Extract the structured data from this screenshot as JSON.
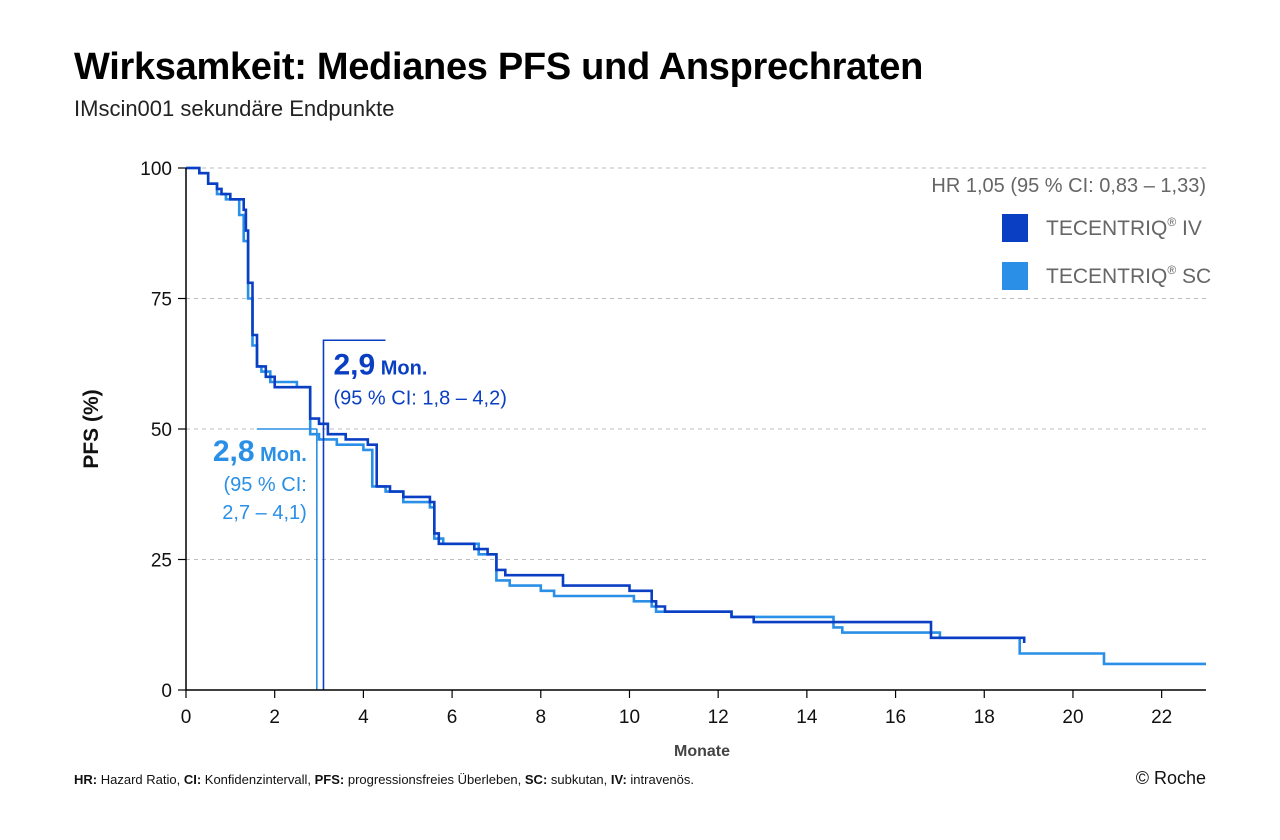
{
  "header": {
    "title": "Wirksamkeit: Medianes PFS und Ansprechraten",
    "subtitle": "IMscin001 sekundäre Endpunkte"
  },
  "colors": {
    "iv": "#0a3fc4",
    "sc": "#2a8fe6",
    "grid": "#bdbdbd",
    "axis": "#000000",
    "hr_text": "#666666"
  },
  "footnote": [
    {
      "term": "HR:",
      "text": " Hazard Ratio, "
    },
    {
      "term": "CI:",
      "text": " Konfidenzintervall, "
    },
    {
      "term": "PFS:",
      "text": " progressionsfreies Überleben, "
    },
    {
      "term": "SC:",
      "text": " subkutan, "
    },
    {
      "term": "IV:",
      "text": " intravenös."
    }
  ],
  "copyright": "© Roche",
  "chart_data": {
    "type": "line",
    "subtype": "kaplan-meier step",
    "xlabel": "Monate",
    "ylabel": "PFS (%)",
    "xlim": [
      0,
      23
    ],
    "ylim": [
      0,
      100
    ],
    "xticks": [
      0,
      2,
      4,
      6,
      8,
      10,
      12,
      14,
      16,
      18,
      20,
      22
    ],
    "yticks": [
      0,
      25,
      50,
      75,
      100
    ],
    "grid": "horizontal dashed",
    "legend_position": "top-right",
    "hr_annotation": "HR 1,05 (95 % CI: 0,83 – 1,33)",
    "series": [
      {
        "key": "iv",
        "name": "TECENTRIQ® IV",
        "legend_main": "TECENTRIQ",
        "legend_sup": "®",
        "legend_suffix": " IV",
        "points": [
          [
            0,
            100
          ],
          [
            0.3,
            99
          ],
          [
            0.5,
            97
          ],
          [
            0.7,
            96
          ],
          [
            0.8,
            95
          ],
          [
            1.0,
            94
          ],
          [
            1.3,
            92
          ],
          [
            1.35,
            88
          ],
          [
            1.4,
            78
          ],
          [
            1.5,
            68
          ],
          [
            1.6,
            62
          ],
          [
            1.8,
            60
          ],
          [
            2.0,
            58
          ],
          [
            2.8,
            52
          ],
          [
            3.0,
            51
          ],
          [
            3.2,
            49
          ],
          [
            3.6,
            48
          ],
          [
            4.1,
            47
          ],
          [
            4.3,
            39
          ],
          [
            4.6,
            38
          ],
          [
            4.9,
            37
          ],
          [
            5.1,
            37
          ],
          [
            5.5,
            36
          ],
          [
            5.6,
            30
          ],
          [
            5.7,
            28
          ],
          [
            6.5,
            27
          ],
          [
            6.8,
            26
          ],
          [
            7.0,
            23
          ],
          [
            7.2,
            22
          ],
          [
            8.3,
            22
          ],
          [
            8.5,
            20
          ],
          [
            10.0,
            19
          ],
          [
            10.5,
            17
          ],
          [
            10.6,
            16
          ],
          [
            10.8,
            15
          ],
          [
            12.0,
            15
          ],
          [
            12.3,
            14
          ],
          [
            12.8,
            13
          ],
          [
            16.8,
            10
          ],
          [
            18.9,
            10
          ],
          [
            18.9,
            9
          ]
        ]
      },
      {
        "key": "sc",
        "name": "TECENTRIQ® SC",
        "legend_main": "TECENTRIQ",
        "legend_sup": "®",
        "legend_suffix": " SC",
        "points": [
          [
            0,
            100
          ],
          [
            0.3,
            99
          ],
          [
            0.5,
            97
          ],
          [
            0.7,
            95
          ],
          [
            0.9,
            94
          ],
          [
            1.2,
            91
          ],
          [
            1.3,
            86
          ],
          [
            1.4,
            75
          ],
          [
            1.5,
            66
          ],
          [
            1.6,
            62
          ],
          [
            1.7,
            61
          ],
          [
            1.9,
            59
          ],
          [
            2.5,
            58
          ],
          [
            2.8,
            49
          ],
          [
            3.0,
            48
          ],
          [
            3.4,
            47
          ],
          [
            4.0,
            46
          ],
          [
            4.2,
            39
          ],
          [
            4.5,
            38
          ],
          [
            4.9,
            36
          ],
          [
            5.5,
            35
          ],
          [
            5.6,
            29
          ],
          [
            5.8,
            28
          ],
          [
            6.6,
            26
          ],
          [
            7.0,
            21
          ],
          [
            7.3,
            20
          ],
          [
            8.0,
            19
          ],
          [
            8.3,
            18
          ],
          [
            9.0,
            18
          ],
          [
            10.1,
            17
          ],
          [
            10.5,
            16
          ],
          [
            10.6,
            15
          ],
          [
            12.3,
            14
          ],
          [
            14.6,
            12
          ],
          [
            14.8,
            11
          ],
          [
            16.0,
            11
          ],
          [
            17.0,
            10
          ],
          [
            18.8,
            7
          ],
          [
            20.7,
            5
          ],
          [
            23.0,
            5
          ]
        ]
      }
    ],
    "median_annotations": [
      {
        "key": "iv",
        "x": 3.1,
        "value": "2,9",
        "unit": " Mon.",
        "ci_line1": "(95 % CI: 1,8 – 4,2)",
        "ci_line2": ""
      },
      {
        "key": "sc",
        "x": 2.95,
        "value": "2,8",
        "unit": " Mon.",
        "ci_line1": "(95 % CI:",
        "ci_line2": "2,7 – 4,1)"
      }
    ]
  }
}
